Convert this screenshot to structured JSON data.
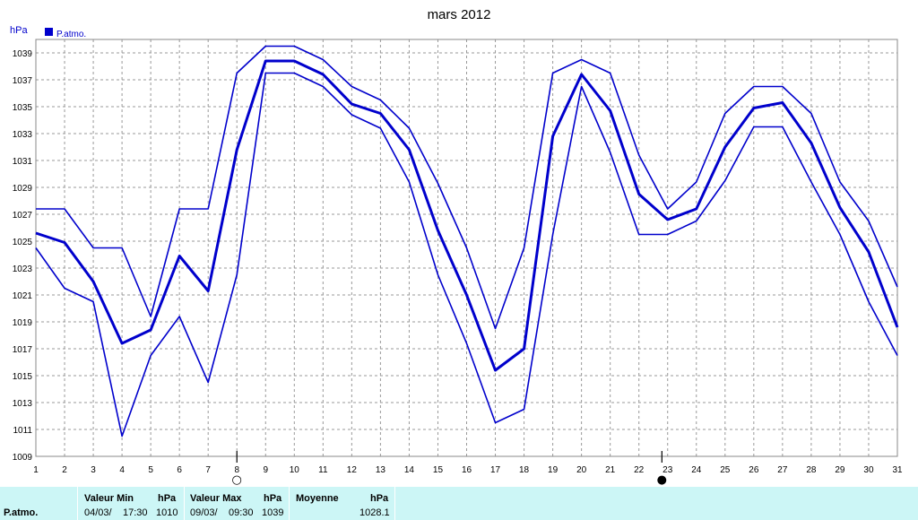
{
  "chart_data": {
    "type": "line",
    "title": "mars 2012",
    "ylabel": "hPa",
    "legend": [
      {
        "name": "P.atmo.",
        "color": "#0000cc"
      }
    ],
    "legend_placement": "top-left",
    "x": [
      1,
      2,
      3,
      4,
      5,
      6,
      7,
      8,
      9,
      10,
      11,
      12,
      13,
      14,
      15,
      16,
      17,
      18,
      19,
      20,
      21,
      22,
      23,
      24,
      25,
      26,
      27,
      28,
      29,
      30,
      31
    ],
    "x_tick_labels": [
      "1",
      "2",
      "3",
      "4",
      "5",
      "6",
      "7",
      "8",
      "9",
      "10",
      "11",
      "12",
      "13",
      "14",
      "15",
      "16",
      "17",
      "18",
      "19",
      "20",
      "21",
      "22",
      "23",
      "24",
      "25",
      "26",
      "27",
      "28",
      "29",
      "30",
      "31"
    ],
    "xlim": [
      1,
      31
    ],
    "ylim": [
      1009,
      1040
    ],
    "y_ticks": [
      1009,
      1011,
      1013,
      1015,
      1017,
      1019,
      1021,
      1023,
      1025,
      1027,
      1029,
      1031,
      1033,
      1035,
      1037,
      1039
    ],
    "y_tick_labels": [
      "1009",
      "1011",
      "1013",
      "1015",
      "1017",
      "1019",
      "1021",
      "1023",
      "1025",
      "1027",
      "1029",
      "1031",
      "1033",
      "1035",
      "1037",
      "1039"
    ],
    "grid": true,
    "line_color": "#0000cc",
    "series": [
      {
        "role": "max",
        "values": [
          1027.4,
          1027.4,
          1024.5,
          1024.5,
          1019.4,
          1027.4,
          1027.4,
          1037.5,
          1039.5,
          1039.5,
          1038.5,
          1036.5,
          1035.5,
          1033.4,
          1029.3,
          1024.5,
          1018.5,
          1024.5,
          1037.5,
          1038.5,
          1037.5,
          1031.4,
          1027.4,
          1029.4,
          1034.5,
          1036.5,
          1036.5,
          1034.5,
          1029.4,
          1026.5,
          1021.6
        ]
      },
      {
        "role": "average",
        "values": [
          1025.6,
          1024.9,
          1022.0,
          1017.4,
          1018.4,
          1023.9,
          1021.3,
          1031.8,
          1038.4,
          1038.4,
          1037.4,
          1035.2,
          1034.5,
          1031.8,
          1025.8,
          1021.0,
          1015.4,
          1017.0,
          1032.8,
          1037.4,
          1034.7,
          1028.5,
          1026.6,
          1027.4,
          1032.0,
          1034.9,
          1035.3,
          1032.3,
          1027.5,
          1024.2,
          1018.6
        ]
      },
      {
        "role": "min",
        "values": [
          1024.5,
          1021.5,
          1020.5,
          1010.5,
          1016.5,
          1019.4,
          1014.5,
          1022.5,
          1037.5,
          1037.5,
          1036.5,
          1034.4,
          1033.4,
          1029.4,
          1022.5,
          1017.4,
          1011.5,
          1012.5,
          1025.5,
          1036.5,
          1031.6,
          1025.5,
          1025.5,
          1026.5,
          1029.5,
          1033.5,
          1033.5,
          1029.4,
          1025.5,
          1020.5,
          1016.5
        ]
      }
    ],
    "moon_phases": [
      {
        "day": 8,
        "phase": "full",
        "symbol": "○"
      },
      {
        "day": 22.8,
        "phase": "new",
        "symbol": "●"
      }
    ]
  },
  "summary": {
    "row_label": "P.atmo.",
    "min_header": "Valeur Min",
    "min_unit": "hPa",
    "min_date": "04/03/",
    "min_time": "17:30",
    "min_value": "1010",
    "max_header": "Valeur Max",
    "max_unit": "hPa",
    "max_date": "09/03/",
    "max_time": "09:30",
    "max_value": "1039",
    "avg_header": "Moyenne",
    "avg_unit": "hPa",
    "avg_value": "1028.1"
  }
}
